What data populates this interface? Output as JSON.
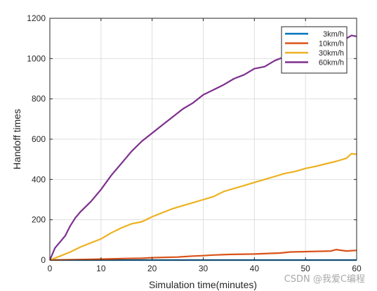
{
  "chart_data": {
    "type": "line",
    "title": "",
    "xlabel": "Simulation time(minutes)",
    "ylabel": "Handoff times",
    "xlim": [
      0,
      60
    ],
    "ylim": [
      0,
      1200
    ],
    "xticks": [
      0,
      10,
      20,
      30,
      40,
      50,
      60
    ],
    "yticks": [
      0,
      200,
      400,
      600,
      800,
      1000,
      1200
    ],
    "grid": true,
    "legend_position": "top-right",
    "series": [
      {
        "name": "3km/h",
        "color": "#0072BD",
        "x": [
          0,
          60
        ],
        "y": [
          0,
          0
        ]
      },
      {
        "name": "10km/h",
        "color": "#D95319",
        "x": [
          0,
          5,
          10,
          15,
          18,
          20,
          25,
          28,
          30,
          32,
          35,
          40,
          43,
          45,
          47,
          50,
          55,
          56,
          58,
          60
        ],
        "y": [
          0,
          2,
          5,
          8,
          9,
          12,
          15,
          20,
          22,
          25,
          28,
          30,
          33,
          35,
          40,
          42,
          45,
          52,
          45,
          48
        ]
      },
      {
        "name": "30km/h",
        "color": "#EDB120",
        "x": [
          0,
          2,
          4,
          6,
          8,
          10,
          12,
          14,
          16,
          18,
          20,
          22,
          24,
          26,
          28,
          30,
          32,
          34,
          36,
          38,
          40,
          42,
          44,
          46,
          48,
          50,
          52,
          54,
          56,
          58,
          59,
          60
        ],
        "y": [
          0,
          20,
          40,
          65,
          85,
          105,
          135,
          160,
          180,
          190,
          215,
          235,
          255,
          270,
          285,
          300,
          315,
          340,
          355,
          370,
          385,
          400,
          415,
          430,
          440,
          455,
          465,
          478,
          490,
          505,
          528,
          525
        ]
      },
      {
        "name": "60km/h",
        "color": "#7E2F8E",
        "x": [
          0,
          1,
          2,
          3,
          4,
          5,
          6,
          8,
          10,
          12,
          14,
          16,
          18,
          20,
          22,
          24,
          26,
          28,
          30,
          32,
          34,
          36,
          38,
          40,
          42,
          44,
          46,
          48,
          50,
          52,
          54,
          56,
          58,
          59,
          60
        ],
        "y": [
          0,
          60,
          90,
          120,
          170,
          210,
          240,
          290,
          350,
          420,
          480,
          540,
          590,
          630,
          670,
          710,
          750,
          780,
          820,
          845,
          870,
          900,
          920,
          950,
          960,
          990,
          1010,
          1030,
          1050,
          1070,
          1080,
          1090,
          1100,
          1115,
          1110
        ]
      }
    ]
  },
  "watermark": "CSDN @我爱C编程"
}
